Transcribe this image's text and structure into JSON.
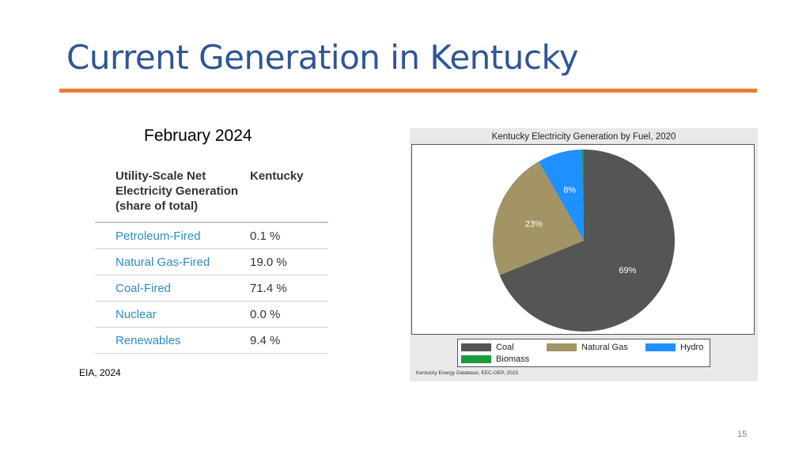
{
  "slide": {
    "title": "Current Generation in Kentucky",
    "subtitle": "February 2024",
    "source": "EIA, 2024",
    "page_number": "15"
  },
  "table": {
    "headers": [
      "Utility-Scale Net Electricity Generation (share of total)",
      "Kentucky"
    ],
    "rows": [
      {
        "source": "Petroleum-Fired",
        "value": "0.1 %"
      },
      {
        "source": "Natural Gas-Fired",
        "value": "19.0 %"
      },
      {
        "source": "Coal-Fired",
        "value": "71.4 %"
      },
      {
        "source": "Nuclear",
        "value": "0.0 %"
      },
      {
        "source": "Renewables",
        "value": "9.4 %"
      }
    ]
  },
  "chart_data": {
    "type": "pie",
    "title": "Kentucky Electricity Generation by Fuel, 2020",
    "credit": "Kentucky Energy Database, EEC-OEP, 2023",
    "legend_position": "bottom",
    "slices": [
      {
        "name": "Coal",
        "value": 69,
        "label": "69%",
        "color": "#555555"
      },
      {
        "name": "Natural Gas",
        "value": 23,
        "label": "23%",
        "color": "#a39466"
      },
      {
        "name": "Hydro",
        "value": 8,
        "label": "8%",
        "color": "#1e90ff"
      },
      {
        "name": "Biomass",
        "value": 0.3,
        "label": "",
        "color": "#1a9a3a"
      }
    ]
  }
}
